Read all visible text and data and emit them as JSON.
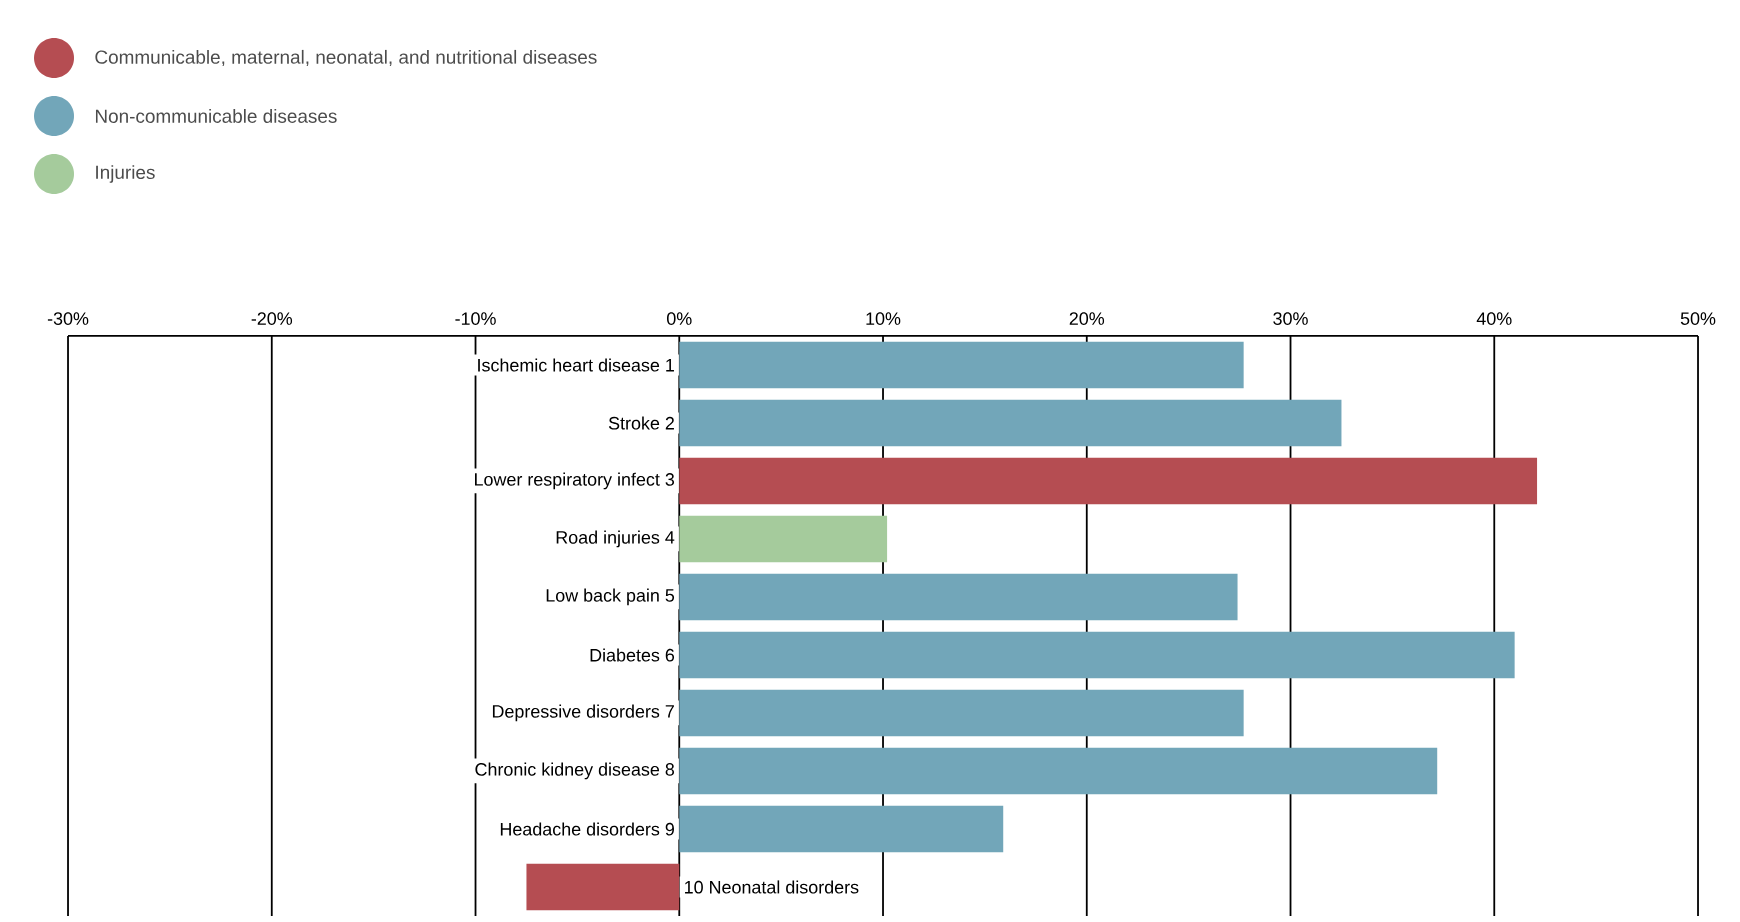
{
  "chart_data": {
    "type": "bar",
    "orientation": "horizontal",
    "categories": [
      "Ischemic heart disease 1",
      "Stroke 2",
      "Lower respiratory infect 3",
      "Road injuries 4",
      "Low back pain 5",
      "Diabetes 6",
      "Depressive disorders 7",
      "Chronic kidney disease 8",
      "Headache disorders 9",
      "10 Neonatal disorders"
    ],
    "series": [
      {
        "name": "Communicable, maternal, neonatal, and nutritional diseases",
        "color": "#b54d52",
        "values": [
          null,
          null,
          42.1,
          null,
          null,
          null,
          null,
          null,
          null,
          -7.5
        ]
      },
      {
        "name": "Non-communicable diseases",
        "color": "#72a6b9",
        "values": [
          27.7,
          32.5,
          null,
          null,
          27.4,
          41.0,
          27.7,
          37.2,
          15.9,
          null
        ]
      },
      {
        "name": "Injuries",
        "color": "#a5cb9c",
        "values": [
          null,
          null,
          null,
          10.2,
          null,
          null,
          null,
          null,
          null,
          null
        ]
      }
    ],
    "xlim": [
      -30,
      50
    ],
    "xticks": [
      {
        "value": -30,
        "label": "-30%"
      },
      {
        "value": -20,
        "label": "-20%"
      },
      {
        "value": -10,
        "label": "-10%"
      },
      {
        "value": 0,
        "label": "0%"
      },
      {
        "value": 10,
        "label": "10%"
      },
      {
        "value": 20,
        "label": "20%"
      },
      {
        "value": 30,
        "label": "30%"
      },
      {
        "value": 40,
        "label": "40%"
      },
      {
        "value": 50,
        "label": "50%"
      }
    ],
    "grid": "x",
    "legend": "top left"
  }
}
